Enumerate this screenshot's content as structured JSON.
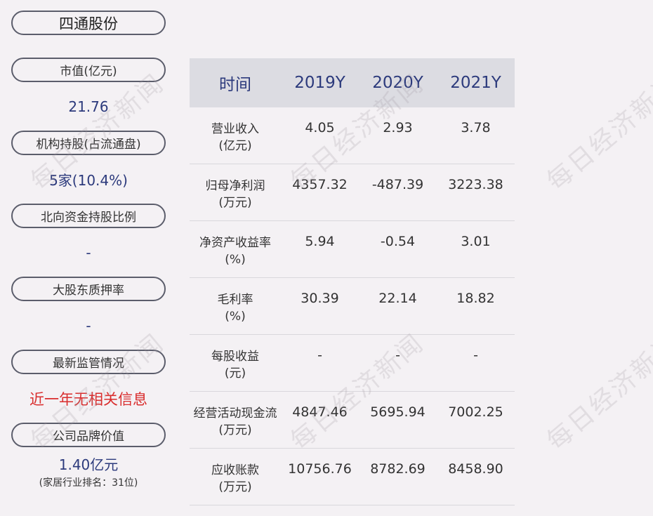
{
  "company": "四通股份",
  "left_metrics": [
    {
      "label": "市值(亿元)",
      "value": "21.76"
    },
    {
      "label": "机构持股(占流通盘)",
      "value": "5家(10.4%)"
    },
    {
      "label": "北向资金持股比例",
      "value": "-"
    },
    {
      "label": "大股东质押率",
      "value": "-"
    },
    {
      "label": "最新监管情况",
      "value": "近一年无相关信息"
    },
    {
      "label": "公司品牌价值",
      "value": "1.40亿元",
      "sub": "(家居行业排名：31位)"
    }
  ],
  "table": {
    "headers": [
      "时间",
      "2019Y",
      "2020Y",
      "2021Y"
    ],
    "rows": [
      {
        "label": [
          "营业收入",
          "(亿元)"
        ],
        "values": [
          "4.05",
          "2.93",
          "3.78"
        ]
      },
      {
        "label": [
          "归母净利润",
          "(万元)"
        ],
        "values": [
          "4357.32",
          "-487.39",
          "3223.38"
        ]
      },
      {
        "label": [
          "净资产收益率",
          "(%)"
        ],
        "values": [
          "5.94",
          "-0.54",
          "3.01"
        ]
      },
      {
        "label": [
          "毛利率",
          "(%)"
        ],
        "values": [
          "30.39",
          "22.14",
          "18.82"
        ]
      },
      {
        "label": [
          "每股收益",
          "(元)"
        ],
        "values": [
          "-",
          "-",
          "-"
        ]
      },
      {
        "label": [
          "经营活动现金流",
          "(万元)"
        ],
        "values": [
          "4847.46",
          "5695.94",
          "7002.25"
        ]
      },
      {
        "label": [
          "应收账款",
          "(万元)"
        ],
        "values": [
          "10756.76",
          "8782.69",
          "8458.90"
        ]
      }
    ]
  },
  "watermark": "每日经济新闻",
  "colors": {
    "value_blue": "#2c3a7c",
    "alert_red": "#d92d2d",
    "header_bg": "#dcdce2",
    "page_bg": "#f4f1f4"
  }
}
